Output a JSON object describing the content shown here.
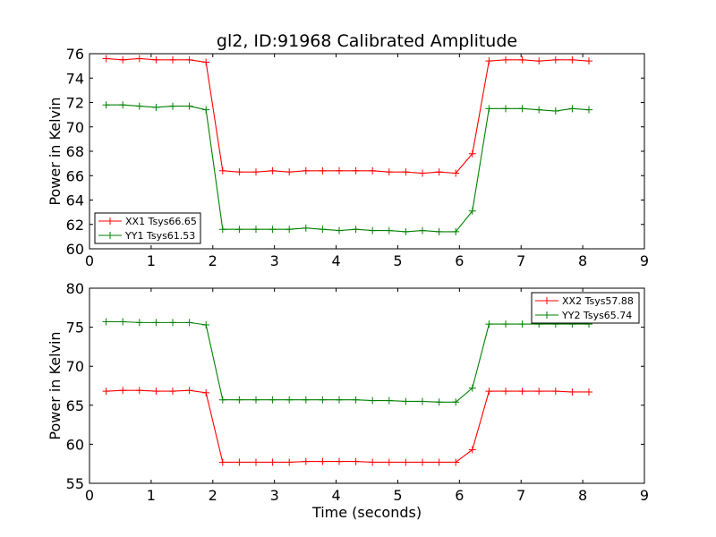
{
  "title": "gl2, ID:91968 Calibrated Amplitude",
  "chart_data": [
    {
      "type": "line",
      "ylabel": "Power in Kelvin",
      "xlabel": "",
      "xlim": [
        0,
        9
      ],
      "ylim": [
        60,
        76
      ],
      "xticks": [
        "0",
        "1",
        "2",
        "3",
        "4",
        "5",
        "6",
        "7",
        "8",
        "9"
      ],
      "yticks": [
        "60",
        "62",
        "64",
        "66",
        "68",
        "70",
        "72",
        "74",
        "76"
      ],
      "legend": "bottom-left",
      "x": [
        0.27,
        0.54,
        0.81,
        1.08,
        1.35,
        1.62,
        1.89,
        2.16,
        2.43,
        2.7,
        2.97,
        3.24,
        3.51,
        3.78,
        4.05,
        4.32,
        4.59,
        4.86,
        5.13,
        5.4,
        5.67,
        5.94,
        6.21,
        6.48,
        6.75,
        7.02,
        7.29,
        7.56,
        7.83,
        8.1
      ],
      "series": [
        {
          "name": "XX1 Tsys66.65",
          "color": "#ff0000",
          "values": [
            75.6,
            75.5,
            75.6,
            75.5,
            75.5,
            75.5,
            75.3,
            66.4,
            66.3,
            66.3,
            66.4,
            66.3,
            66.4,
            66.4,
            66.4,
            66.4,
            66.4,
            66.3,
            66.3,
            66.2,
            66.3,
            66.2,
            67.8,
            75.4,
            75.5,
            75.5,
            75.4,
            75.5,
            75.5,
            75.4
          ]
        },
        {
          "name": "YY1 Tsys61.53",
          "color": "#008000",
          "values": [
            71.8,
            71.8,
            71.7,
            71.6,
            71.7,
            71.7,
            71.4,
            61.6,
            61.6,
            61.6,
            61.6,
            61.6,
            61.7,
            61.6,
            61.5,
            61.6,
            61.5,
            61.5,
            61.4,
            61.5,
            61.4,
            61.4,
            63.1,
            71.5,
            71.5,
            71.5,
            71.4,
            71.3,
            71.5,
            71.4
          ]
        }
      ]
    },
    {
      "type": "line",
      "ylabel": "Power in Kelvin",
      "xlabel": "Time (seconds)",
      "xlim": [
        0,
        9
      ],
      "ylim": [
        55,
        80
      ],
      "xticks": [
        "0",
        "1",
        "2",
        "3",
        "4",
        "5",
        "6",
        "7",
        "8",
        "9"
      ],
      "yticks": [
        "55",
        "60",
        "65",
        "70",
        "75",
        "80"
      ],
      "legend": "top-right",
      "x": [
        0.27,
        0.54,
        0.81,
        1.08,
        1.35,
        1.62,
        1.89,
        2.16,
        2.43,
        2.7,
        2.97,
        3.24,
        3.51,
        3.78,
        4.05,
        4.32,
        4.59,
        4.86,
        5.13,
        5.4,
        5.67,
        5.94,
        6.21,
        6.48,
        6.75,
        7.02,
        7.29,
        7.56,
        7.83,
        8.1
      ],
      "series": [
        {
          "name": "XX2 Tsys57.88",
          "color": "#ff0000",
          "values": [
            66.8,
            66.9,
            66.9,
            66.8,
            66.8,
            66.9,
            66.6,
            57.7,
            57.7,
            57.7,
            57.7,
            57.7,
            57.8,
            57.8,
            57.8,
            57.8,
            57.7,
            57.7,
            57.7,
            57.7,
            57.7,
            57.7,
            59.3,
            66.8,
            66.8,
            66.8,
            66.8,
            66.8,
            66.7,
            66.7
          ]
        },
        {
          "name": "YY2 Tsys65.74",
          "color": "#008000",
          "values": [
            75.7,
            75.7,
            75.6,
            75.6,
            75.6,
            75.6,
            75.3,
            65.7,
            65.7,
            65.7,
            65.7,
            65.7,
            65.7,
            65.7,
            65.7,
            65.7,
            65.6,
            65.6,
            65.5,
            65.5,
            65.4,
            65.4,
            67.2,
            75.4,
            75.4,
            75.4,
            75.4,
            75.4,
            75.4,
            75.4
          ]
        }
      ]
    }
  ]
}
